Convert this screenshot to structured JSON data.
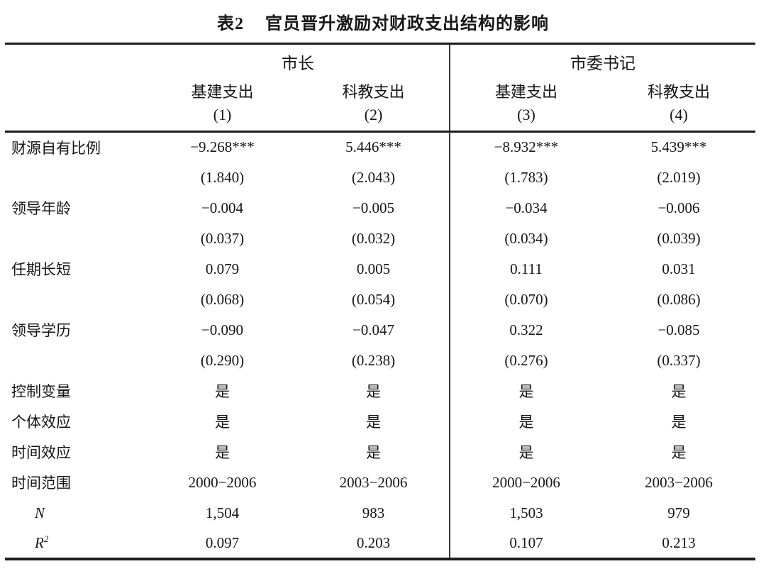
{
  "title": {
    "tag": "表2",
    "text": "官员晋升激励对财政支出结构的影响"
  },
  "table": {
    "groups": [
      {
        "label": "市长",
        "span": 2
      },
      {
        "label": "市委书记",
        "span": 2
      }
    ],
    "columns": [
      {
        "title": "基建支出",
        "number": "(1)"
      },
      {
        "title": "科教支出",
        "number": "(2)"
      },
      {
        "title": "基建支出",
        "number": "(3)"
      },
      {
        "title": "科教支出",
        "number": "(4)"
      }
    ],
    "rows": [
      {
        "label": "财源自有比例",
        "values": [
          "−9.268***",
          "5.446***",
          "−8.932***",
          "5.439***"
        ]
      },
      {
        "label": "",
        "values": [
          "(1.840)",
          "(2.043)",
          "(1.783)",
          "(2.019)"
        ]
      },
      {
        "label": "领导年龄",
        "values": [
          "−0.004",
          "−0.005",
          "−0.034",
          "−0.006"
        ]
      },
      {
        "label": "",
        "values": [
          "(0.037)",
          "(0.032)",
          "(0.034)",
          "(0.039)"
        ]
      },
      {
        "label": "任期长短",
        "values": [
          "0.079",
          "0.005",
          "0.111",
          "0.031"
        ]
      },
      {
        "label": "",
        "values": [
          "(0.068)",
          "(0.054)",
          "(0.070)",
          "(0.086)"
        ]
      },
      {
        "label": "领导学历",
        "values": [
          "−0.090",
          "−0.047",
          "0.322",
          "−0.085"
        ]
      },
      {
        "label": "",
        "values": [
          "(0.290)",
          "(0.238)",
          "(0.276)",
          "(0.337)"
        ]
      },
      {
        "label": "控制变量",
        "values": [
          "是",
          "是",
          "是",
          "是"
        ]
      },
      {
        "label": "个体效应",
        "values": [
          "是",
          "是",
          "是",
          "是"
        ]
      },
      {
        "label": "时间效应",
        "values": [
          "是",
          "是",
          "是",
          "是"
        ]
      },
      {
        "label": "时间范围",
        "values": [
          "2000−2006",
          "2003−2006",
          "2000−2006",
          "2003−2006"
        ]
      },
      {
        "label": "N",
        "italic": true,
        "values": [
          "1,504",
          "983",
          "1,503",
          "979"
        ]
      },
      {
        "label": "R",
        "sup": "2",
        "italic": true,
        "values": [
          "0.097",
          "0.203",
          "0.107",
          "0.213"
        ]
      }
    ]
  }
}
